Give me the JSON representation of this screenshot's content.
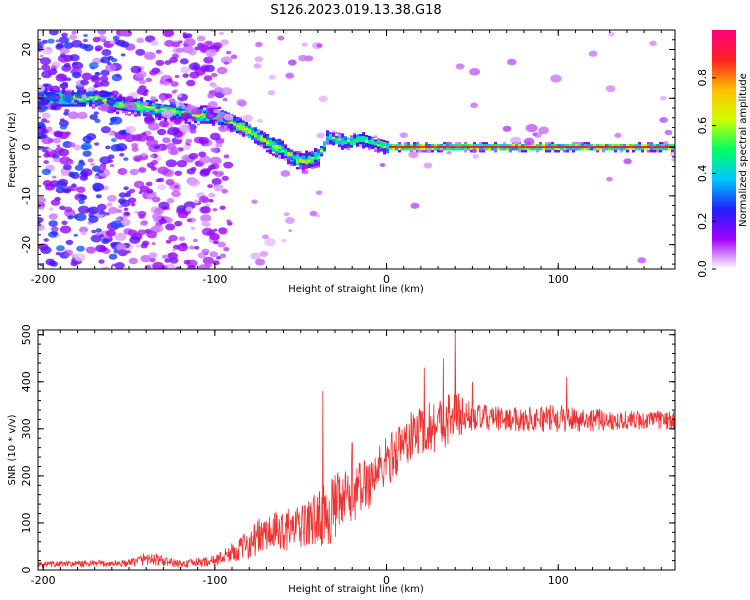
{
  "figure": {
    "title": "S126.2023.019.13.38.G18"
  },
  "chart_data": [
    {
      "type": "heatmap",
      "xlabel": "Height of straight line (km)",
      "ylabel": "Frequency (Hz)",
      "xlim": [
        -203,
        168
      ],
      "ylim": [
        -25,
        24
      ],
      "xticks": [
        {
          "value": -200,
          "label": "-200"
        },
        {
          "value": -100,
          "label": "-100"
        },
        {
          "value": 0,
          "label": "0"
        },
        {
          "value": 100,
          "label": "100"
        }
      ],
      "yticks": [
        {
          "value": -20,
          "label": "-20"
        },
        {
          "value": -10,
          "label": "-10"
        },
        {
          "value": 0,
          "label": "0"
        },
        {
          "value": 10,
          "label": "10"
        },
        {
          "value": 20,
          "label": "20"
        }
      ],
      "ridge": [
        {
          "x": -170,
          "y": 10
        },
        {
          "x": -160,
          "y": 9
        },
        {
          "x": -150,
          "y": 8.5
        },
        {
          "x": -140,
          "y": 8
        },
        {
          "x": -130,
          "y": 7.5
        },
        {
          "x": -120,
          "y": 7
        },
        {
          "x": -110,
          "y": 6.5
        },
        {
          "x": -100,
          "y": 6.5
        },
        {
          "x": -90,
          "y": 5
        },
        {
          "x": -80,
          "y": 3
        },
        {
          "x": -70,
          "y": 1
        },
        {
          "x": -60,
          "y": -1
        },
        {
          "x": -50,
          "y": -3
        },
        {
          "x": -40,
          "y": -2
        },
        {
          "x": -35,
          "y": 2
        },
        {
          "x": -25,
          "y": 1
        },
        {
          "x": -15,
          "y": 1.5
        },
        {
          "x": -5,
          "y": 0.5
        },
        {
          "x": 0,
          "y": 0
        },
        {
          "x": 50,
          "y": 0
        },
        {
          "x": 100,
          "y": 0
        },
        {
          "x": 168,
          "y": 0
        }
      ],
      "colorbar": {
        "label": "Normalized spectral amplitude",
        "range": [
          0,
          1
        ],
        "ticks": [
          {
            "value": 0.0,
            "label": "0.0"
          },
          {
            "value": 0.2,
            "label": "0.2"
          },
          {
            "value": 0.4,
            "label": "0.4"
          },
          {
            "value": 0.6,
            "label": "0.6"
          },
          {
            "value": 0.8,
            "label": "0.8"
          }
        ],
        "colors": [
          "#ffffff",
          "#a000ff",
          "#2020ff",
          "#00c8ff",
          "#00ff60",
          "#d0ff00",
          "#ffc000",
          "#ff2020",
          "#ff0080"
        ]
      }
    },
    {
      "type": "line",
      "xlabel": "Height of straight line (km)",
      "ylabel": "SNR (10 * v/v)",
      "xlim": [
        -203,
        168
      ],
      "ylim": [
        0,
        510
      ],
      "xticks": [
        {
          "value": -200,
          "label": "-200"
        },
        {
          "value": -100,
          "label": "-100"
        },
        {
          "value": 0,
          "label": "0"
        },
        {
          "value": 100,
          "label": "100"
        }
      ],
      "yticks": [
        {
          "value": 0,
          "label": "0"
        },
        {
          "value": 100,
          "label": "100"
        },
        {
          "value": 200,
          "label": "200"
        },
        {
          "value": 300,
          "label": "300"
        },
        {
          "value": 400,
          "label": "400"
        },
        {
          "value": 500,
          "label": "500"
        }
      ],
      "color": "#ee3333",
      "envelope": [
        {
          "x": -203,
          "mean": 12,
          "noise": 6
        },
        {
          "x": -150,
          "mean": 14,
          "noise": 8
        },
        {
          "x": -140,
          "mean": 25,
          "noise": 15
        },
        {
          "x": -120,
          "mean": 12,
          "noise": 8
        },
        {
          "x": -100,
          "mean": 20,
          "noise": 12
        },
        {
          "x": -85,
          "mean": 45,
          "noise": 25
        },
        {
          "x": -75,
          "mean": 70,
          "noise": 40
        },
        {
          "x": -60,
          "mean": 85,
          "noise": 45
        },
        {
          "x": -50,
          "mean": 90,
          "noise": 45
        },
        {
          "x": -40,
          "mean": 110,
          "noise": 60
        },
        {
          "x": -30,
          "mean": 130,
          "noise": 75
        },
        {
          "x": -20,
          "mean": 160,
          "noise": 60
        },
        {
          "x": -10,
          "mean": 190,
          "noise": 60
        },
        {
          "x": 0,
          "mean": 230,
          "noise": 55
        },
        {
          "x": 10,
          "mean": 270,
          "noise": 55
        },
        {
          "x": 20,
          "mean": 300,
          "noise": 55
        },
        {
          "x": 30,
          "mean": 310,
          "noise": 60
        },
        {
          "x": 40,
          "mean": 330,
          "noise": 55
        },
        {
          "x": 50,
          "mean": 325,
          "noise": 30
        },
        {
          "x": 70,
          "mean": 320,
          "noise": 25
        },
        {
          "x": 100,
          "mean": 322,
          "noise": 30
        },
        {
          "x": 130,
          "mean": 318,
          "noise": 22
        },
        {
          "x": 168,
          "mean": 318,
          "noise": 20
        }
      ],
      "spikes": [
        {
          "x": -37,
          "y": 380
        },
        {
          "x": -20,
          "y": 270
        },
        {
          "x": 22,
          "y": 430
        },
        {
          "x": 33,
          "y": 450
        },
        {
          "x": 40,
          "y": 510
        },
        {
          "x": 50,
          "y": 400
        },
        {
          "x": 105,
          "y": 410
        }
      ]
    }
  ]
}
